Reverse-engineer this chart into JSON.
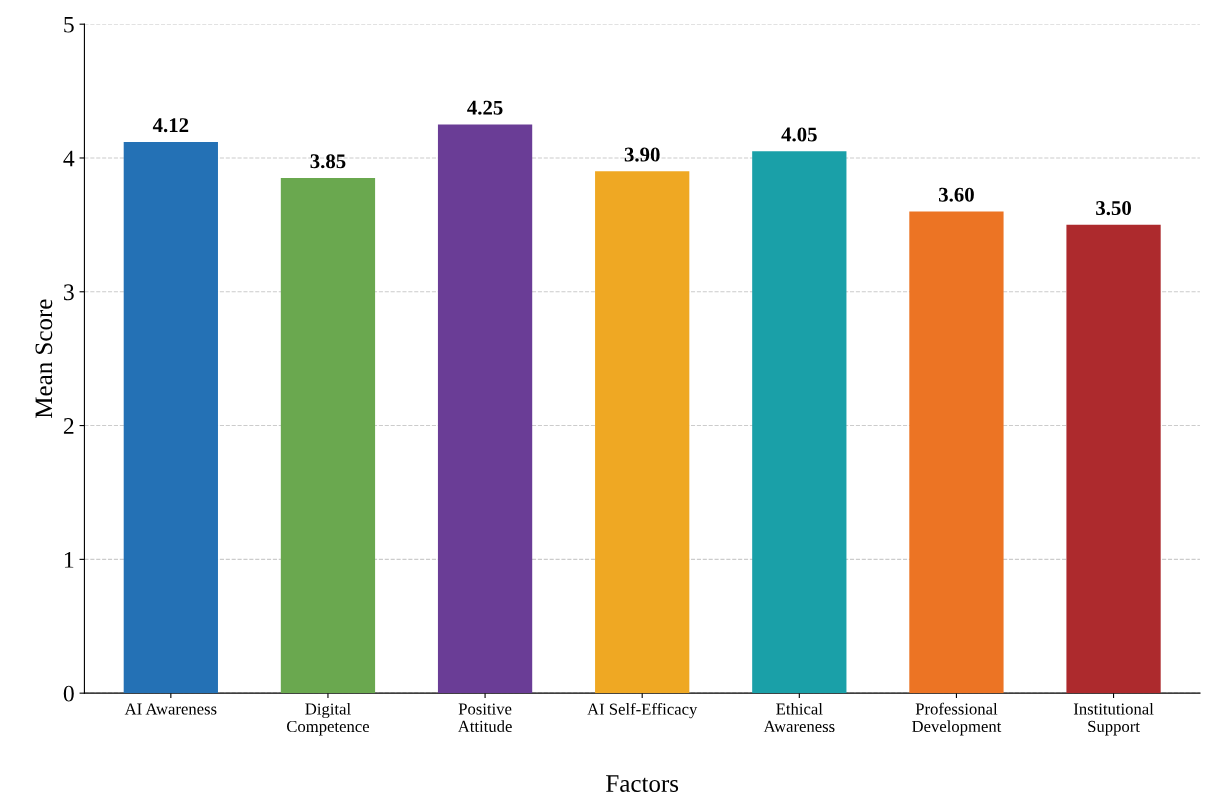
{
  "chart_data": {
    "type": "bar",
    "xlabel": "Factors",
    "ylabel": "Mean Score",
    "categories": [
      "AI Awareness",
      "Digital\nCompetence",
      "Positive\nAttitude",
      "AI Self-Efficacy",
      "Ethical\nAwareness",
      "Professional\nDevelopment",
      "Institutional\nSupport"
    ],
    "values": [
      4.12,
      3.85,
      4.25,
      3.9,
      4.05,
      3.6,
      3.5
    ],
    "value_labels": [
      "4.12",
      "3.85",
      "4.25",
      "3.90",
      "4.05",
      "3.60",
      "3.50"
    ],
    "colors": [
      "#2471b5",
      "#6aa84f",
      "#6a3d96",
      "#efa823",
      "#1aa0a8",
      "#ec7424",
      "#ad2a2d"
    ],
    "ylim": [
      0,
      5
    ],
    "yticks": [
      0,
      1,
      2,
      3,
      4,
      5
    ],
    "grid": "y",
    "legend": false
  }
}
